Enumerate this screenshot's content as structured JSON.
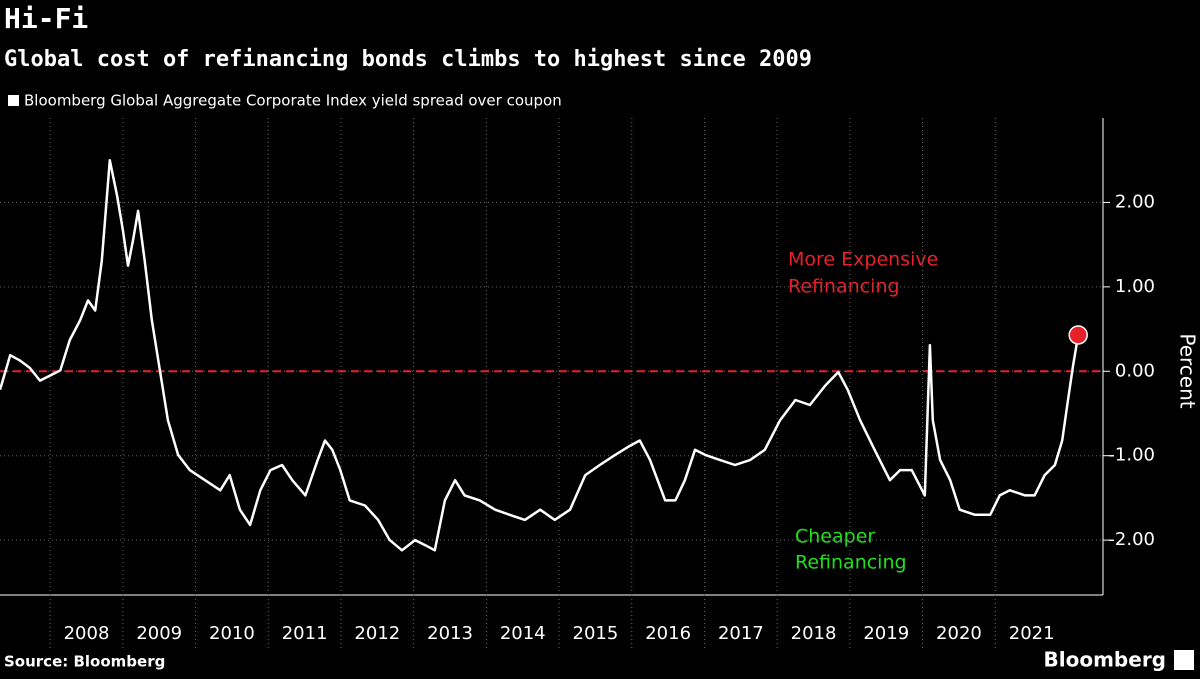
{
  "chart_data": {
    "type": "line",
    "title": "Hi-Fi",
    "subtitle": "Global cost of refinancing bonds climbs to highest since 2009",
    "y_label": "Percent",
    "source": "Source: Bloomberg",
    "brand": "Bloomberg",
    "annotations": [
      {
        "lines": [
          "More Expensive",
          "Refinancing"
        ],
        "color": "#e8202a"
      },
      {
        "lines": [
          "Cheaper",
          "Refinancing"
        ],
        "color": "#22e01e"
      }
    ],
    "reference_line": {
      "value": 0,
      "color": "#e8202a"
    },
    "highlight_color": "#e8202a",
    "x": [
      2007.31,
      2007.45,
      2007.58,
      2007.72,
      2007.86,
      2008.0,
      2008.14,
      2008.27,
      2008.41,
      2008.52,
      2008.62,
      2008.71,
      2008.82,
      2008.92,
      2009.0,
      2009.07,
      2009.14,
      2009.21,
      2009.3,
      2009.4,
      2009.51,
      2009.62,
      2009.76,
      2009.92,
      2010.13,
      2010.34,
      2010.47,
      2010.61,
      2010.75,
      2010.89,
      2011.03,
      2011.19,
      2011.33,
      2011.51,
      2011.68,
      2011.78,
      2011.88,
      2011.99,
      2012.12,
      2012.33,
      2012.51,
      2012.67,
      2012.84,
      2013.02,
      2013.16,
      2013.29,
      2013.43,
      2013.57,
      2013.7,
      2013.91,
      2014.12,
      2014.32,
      2014.53,
      2014.74,
      2014.94,
      2015.15,
      2015.36,
      2015.56,
      2015.77,
      2015.98,
      2016.11,
      2016.25,
      2016.46,
      2016.6,
      2016.73,
      2016.87,
      2017.01,
      2017.21,
      2017.42,
      2017.63,
      2017.83,
      2018.04,
      2018.25,
      2018.45,
      2018.66,
      2018.84,
      2018.97,
      2019.14,
      2019.34,
      2019.55,
      2019.69,
      2019.85,
      2020.03,
      2020.1,
      2020.14,
      2020.24,
      2020.38,
      2020.51,
      2020.72,
      2020.93,
      2021.06,
      2021.2,
      2021.41,
      2021.54,
      2021.68,
      2021.82,
      2021.92,
      2022.0,
      2022.07,
      2022.14
    ],
    "series": [
      {
        "name": "Bloomberg Global Aggregate Corporate Index yield spread over coupon",
        "color": "#ffffff",
        "values": [
          -0.22,
          0.19,
          0.13,
          0.04,
          -0.11,
          -0.05,
          0.01,
          0.37,
          0.6,
          0.84,
          0.72,
          1.31,
          2.5,
          2.08,
          1.67,
          1.25,
          1.55,
          1.9,
          1.31,
          0.6,
          0.01,
          -0.58,
          -0.99,
          -1.17,
          -1.29,
          -1.41,
          -1.23,
          -1.64,
          -1.82,
          -1.41,
          -1.17,
          -1.11,
          -1.29,
          -1.47,
          -1.05,
          -0.82,
          -0.93,
          -1.17,
          -1.53,
          -1.59,
          -1.76,
          -2.0,
          -2.12,
          -2.0,
          -2.06,
          -2.12,
          -1.53,
          -1.29,
          -1.47,
          -1.53,
          -1.64,
          -1.7,
          -1.76,
          -1.64,
          -1.76,
          -1.64,
          -1.23,
          -1.11,
          -0.99,
          -0.88,
          -0.82,
          -1.05,
          -1.53,
          -1.53,
          -1.29,
          -0.93,
          -0.99,
          -1.05,
          -1.11,
          -1.05,
          -0.93,
          -0.58,
          -0.34,
          -0.4,
          -0.17,
          -0.01,
          -0.22,
          -0.58,
          -0.93,
          -1.29,
          -1.17,
          -1.17,
          -1.47,
          0.31,
          -0.58,
          -1.05,
          -1.29,
          -1.64,
          -1.7,
          -1.7,
          -1.47,
          -1.41,
          -1.47,
          -1.47,
          -1.23,
          -1.11,
          -0.82,
          -0.34,
          0.07,
          0.43
        ]
      }
    ],
    "xlim": [
      2007.31,
      2022.44
    ],
    "xticks": [
      2008,
      2009,
      2010,
      2011,
      2012,
      2013,
      2014,
      2015,
      2016,
      2017,
      2018,
      2019,
      2020,
      2021
    ],
    "ylim": [
      -2.65,
      3.0
    ],
    "yticks": [
      {
        "value": -2,
        "label": "-2.00"
      },
      {
        "value": -1,
        "label": "-1.00"
      },
      {
        "value": 0,
        "label": "0.00"
      },
      {
        "value": 1,
        "label": "1.00"
      },
      {
        "value": 2,
        "label": "2.00"
      }
    ],
    "grid": true
  }
}
